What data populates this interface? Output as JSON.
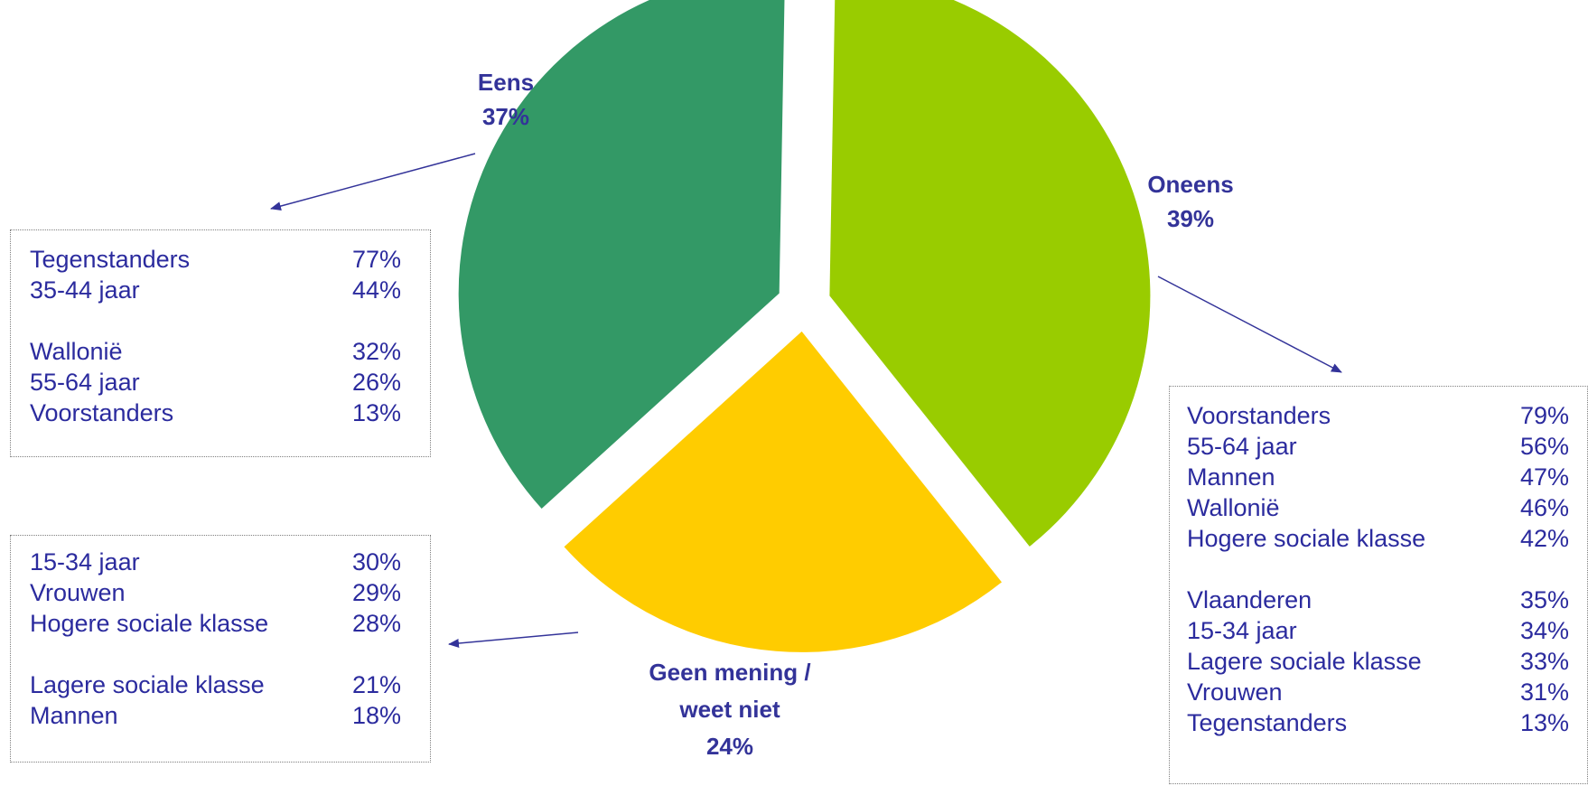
{
  "chart_data": {
    "type": "pie",
    "slices": [
      {
        "label": "Eens",
        "value": 37,
        "display": "37%",
        "color": "#339966"
      },
      {
        "label": "Oneens",
        "value": 39,
        "display": "39%",
        "color": "#99cc00"
      },
      {
        "label": "Geen mening / weet niet",
        "value": 24,
        "display": "24%",
        "color": "#ffcc00"
      }
    ],
    "exploded": true
  },
  "labels": {
    "eens": {
      "name": "Eens",
      "pct": "37%"
    },
    "oneens": {
      "name": "Oneens",
      "pct": "39%"
    },
    "geen": {
      "line1": "Geen mening /",
      "line2": "weet niet",
      "pct": "24%"
    }
  },
  "boxes": {
    "eens": {
      "groups": [
        [
          {
            "label": "Tegenstanders",
            "value": "77%"
          },
          {
            "label": "35-44 jaar",
            "value": "44%"
          }
        ],
        [
          {
            "label": "Wallonië",
            "value": "32%"
          },
          {
            "label": "55-64 jaar",
            "value": "26%"
          },
          {
            "label": "Voorstanders",
            "value": "13%"
          }
        ]
      ]
    },
    "geen": {
      "groups": [
        [
          {
            "label": "15-34 jaar",
            "value": "30%"
          },
          {
            "label": "Vrouwen",
            "value": "29%"
          },
          {
            "label": "Hogere sociale klasse",
            "value": "28%"
          }
        ],
        [
          {
            "label": "Lagere sociale klasse",
            "value": "21%"
          },
          {
            "label": "Mannen",
            "value": "18%"
          }
        ]
      ]
    },
    "oneens": {
      "groups": [
        [
          {
            "label": "Voorstanders",
            "value": "79%"
          },
          {
            "label": "55-64 jaar",
            "value": "56%"
          },
          {
            "label": "Mannen",
            "value": "47%"
          },
          {
            "label": "Wallonië",
            "value": "46%"
          },
          {
            "label": "Hogere sociale klasse",
            "value": "42%"
          }
        ],
        [
          {
            "label": "Vlaanderen",
            "value": "35%"
          },
          {
            "label": "15-34 jaar",
            "value": "34%"
          },
          {
            "label": "Lagere sociale klasse",
            "value": "33%"
          },
          {
            "label": "Vrouwen",
            "value": "31%"
          },
          {
            "label": "Tegenstanders",
            "value": "13%"
          }
        ]
      ]
    }
  },
  "colors": {
    "label_text": "#333399",
    "box_text": "#2b2b9e",
    "arrow": "#333399",
    "box_border": "#7f7f7f"
  }
}
